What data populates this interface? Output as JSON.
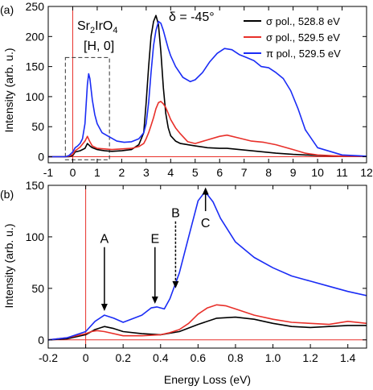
{
  "chart_data": [
    {
      "panel_label": "(a)",
      "type": "line",
      "xlabel": "",
      "ylabel": "Intensity (arb. u.)",
      "xlim": [
        -1,
        12
      ],
      "ylim": [
        -10,
        250
      ],
      "xticks": [
        -1,
        0,
        1,
        2,
        3,
        4,
        5,
        6,
        7,
        8,
        9,
        10,
        11,
        12
      ],
      "yticks": [
        0,
        50,
        100,
        150,
        200,
        250
      ],
      "grid": false,
      "legend_position": "top-right",
      "annotations": {
        "sample_main": "Sr",
        "sample_sub1": "2",
        "sample_mid": "IrO",
        "sample_sub2": "4",
        "direction": "[H, 0]",
        "delta": "δ = -45°"
      },
      "reference_lines": {
        "vertical_x": 0,
        "horizontal_y": 0,
        "color": "#e8302a"
      },
      "inset_box": {
        "x": [
          -0.3,
          1.5
        ],
        "y": [
          -5,
          165
        ],
        "style": "dashed"
      },
      "series": [
        {
          "name": "σ pol., 528.8 eV",
          "color": "#000000",
          "x": [
            -1,
            -0.3,
            -0.15,
            0,
            0.1,
            0.3,
            0.5,
            0.6,
            0.7,
            0.8,
            1.0,
            1.3,
            1.6,
            2.0,
            2.4,
            2.7,
            2.9,
            3.0,
            3.1,
            3.2,
            3.3,
            3.4,
            3.5,
            3.6,
            3.7,
            3.8,
            3.9,
            4.0,
            4.2,
            4.4,
            4.7,
            5.0,
            5.5,
            6.0,
            6.3,
            6.8,
            7.3,
            7.8,
            8.3,
            9.0,
            9.5,
            10.0,
            11.0,
            12.0
          ],
          "y": [
            0,
            0,
            0,
            2,
            8,
            10,
            14,
            22,
            18,
            15,
            12,
            10,
            9,
            10,
            12,
            20,
            40,
            90,
            150,
            200,
            225,
            235,
            220,
            175,
            115,
            72,
            48,
            35,
            26,
            22,
            20,
            18,
            15,
            14,
            14,
            12,
            10,
            8,
            6,
            4,
            3,
            2,
            1,
            1
          ]
        },
        {
          "name": "σ pol., 529.5 eV",
          "color": "#e8302a",
          "x": [
            -1,
            -0.3,
            -0.15,
            0,
            0.1,
            0.3,
            0.5,
            0.6,
            0.7,
            0.8,
            1.0,
            1.3,
            1.6,
            2.0,
            2.4,
            2.7,
            2.9,
            3.0,
            3.1,
            3.2,
            3.3,
            3.4,
            3.5,
            3.6,
            3.7,
            3.8,
            3.9,
            4.0,
            4.2,
            4.4,
            4.7,
            5.0,
            5.5,
            6.0,
            6.3,
            6.8,
            7.3,
            7.8,
            8.3,
            9.0,
            9.5,
            10.0,
            11.0,
            12.0
          ],
          "y": [
            0,
            0,
            1,
            4,
            10,
            16,
            26,
            34,
            25,
            18,
            14,
            13,
            12,
            13,
            14,
            17,
            22,
            30,
            40,
            52,
            65,
            80,
            90,
            92,
            88,
            82,
            72,
            62,
            48,
            38,
            25,
            22,
            28,
            34,
            36,
            31,
            26,
            24,
            20,
            12,
            6,
            3,
            1,
            1
          ]
        },
        {
          "name": "π pol., 529.5 eV",
          "color": "#1a2cf5",
          "x": [
            -1,
            -0.3,
            -0.15,
            0,
            0.1,
            0.2,
            0.3,
            0.4,
            0.5,
            0.6,
            0.65,
            0.7,
            0.8,
            0.9,
            1.0,
            1.2,
            1.5,
            1.8,
            2.1,
            2.4,
            2.7,
            2.9,
            3.0,
            3.1,
            3.2,
            3.3,
            3.4,
            3.5,
            3.6,
            3.7,
            3.8,
            3.9,
            4.0,
            4.2,
            4.5,
            4.8,
            5.0,
            5.3,
            5.6,
            5.9,
            6.2,
            6.5,
            6.8,
            7.1,
            7.4,
            7.7,
            8.0,
            8.3,
            8.6,
            8.9,
            9.2,
            9.5,
            10.0,
            11.0,
            12.0
          ],
          "y": [
            0,
            0,
            2,
            8,
            15,
            18,
            22,
            30,
            55,
            120,
            138,
            130,
            95,
            70,
            55,
            40,
            33,
            26,
            24,
            25,
            30,
            40,
            55,
            90,
            140,
            185,
            210,
            225,
            222,
            210,
            195,
            180,
            168,
            150,
            132,
            125,
            128,
            140,
            158,
            172,
            180,
            178,
            170,
            165,
            160,
            150,
            148,
            140,
            130,
            110,
            80,
            45,
            15,
            3,
            1
          ]
        }
      ]
    },
    {
      "panel_label": "(b)",
      "type": "line",
      "xlabel": "Energy Loss (eV)",
      "ylabel": "Intensity (arb. u.)",
      "xlim": [
        -0.2,
        1.5
      ],
      "ylim": [
        -8,
        150
      ],
      "xticks": [
        -0.2,
        0.0,
        0.2,
        0.4,
        0.6,
        0.8,
        1.0,
        1.2,
        1.4
      ],
      "xtick_labels": [
        "-0.2",
        "0",
        "0.2",
        "0.4",
        "0.6",
        "0.8",
        "1.0",
        "1.2",
        "1.4"
      ],
      "yticks": [
        0,
        50,
        100,
        150
      ],
      "grid": false,
      "reference_lines": {
        "vertical_x": 0,
        "horizontal_y": 0,
        "color": "#e8302a"
      },
      "markers": [
        {
          "label": "A",
          "x": 0.1,
          "y_top": 90,
          "y_tip": 28,
          "style": "solid"
        },
        {
          "label": "E",
          "x": 0.37,
          "y_top": 90,
          "y_tip": 35,
          "style": "solid"
        },
        {
          "label": "B",
          "x": 0.48,
          "y_top": 115,
          "y_tip": 50,
          "style": "dotted"
        },
        {
          "label": "C",
          "x": 0.64,
          "y_top": 125,
          "y_tip": 148,
          "style": "solid-up"
        }
      ],
      "series": [
        {
          "name": "σ pol., 528.8 eV",
          "color": "#000000",
          "x": [
            -0.2,
            -0.1,
            0.0,
            0.05,
            0.1,
            0.15,
            0.2,
            0.3,
            0.4,
            0.5,
            0.6,
            0.7,
            0.8,
            0.9,
            1.0,
            1.1,
            1.2,
            1.3,
            1.4,
            1.5
          ],
          "y": [
            0,
            1,
            5,
            10,
            13,
            11,
            8,
            6,
            5,
            8,
            15,
            21,
            22,
            20,
            16,
            13,
            12,
            13,
            14,
            14
          ]
        },
        {
          "name": "σ pol., 529.5 eV",
          "color": "#e8302a",
          "x": [
            -0.2,
            -0.1,
            0.0,
            0.03,
            0.06,
            0.1,
            0.2,
            0.3,
            0.4,
            0.45,
            0.5,
            0.55,
            0.6,
            0.65,
            0.7,
            0.75,
            0.8,
            0.9,
            1.0,
            1.1,
            1.2,
            1.3,
            1.4,
            1.5
          ],
          "y": [
            0,
            2,
            6,
            8,
            9,
            8,
            4,
            4,
            5,
            7,
            10,
            16,
            25,
            31,
            34,
            33,
            30,
            24,
            20,
            17,
            16,
            15,
            18,
            16
          ]
        },
        {
          "name": "π pol., 529.5 eV",
          "color": "#1a2cf5",
          "x": [
            -0.2,
            -0.1,
            0.0,
            0.05,
            0.1,
            0.15,
            0.2,
            0.3,
            0.35,
            0.38,
            0.42,
            0.45,
            0.5,
            0.55,
            0.6,
            0.63,
            0.65,
            0.68,
            0.72,
            0.8,
            0.9,
            1.0,
            1.1,
            1.2,
            1.3,
            1.4,
            1.5
          ],
          "y": [
            0,
            2,
            8,
            18,
            24,
            21,
            17,
            24,
            31,
            32,
            30,
            40,
            65,
            100,
            135,
            142,
            141,
            134,
            118,
            95,
            80,
            70,
            62,
            57,
            52,
            47,
            43
          ]
        }
      ]
    }
  ]
}
